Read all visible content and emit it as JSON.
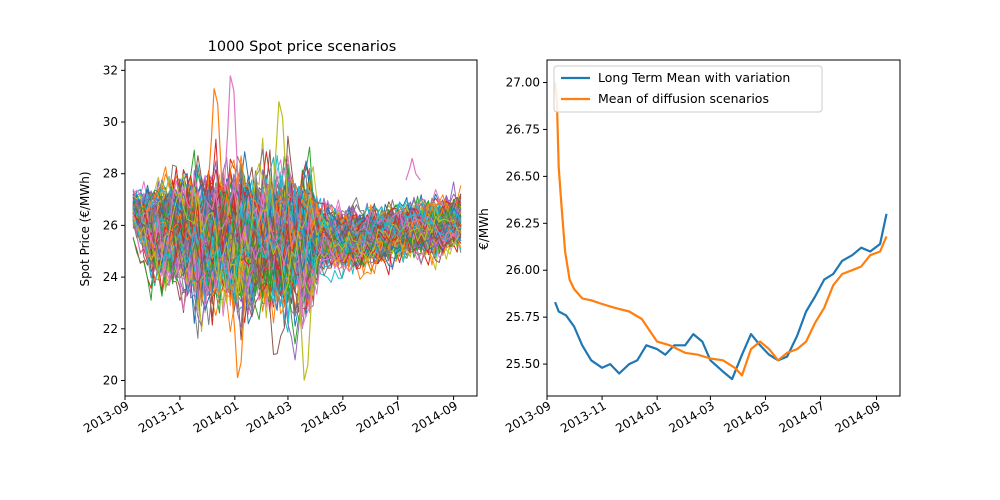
{
  "chart_data": [
    {
      "type": "line",
      "title": "1000 Spot price scenarios",
      "xlabel": "",
      "ylabel": "Spot Price (€/MWh)",
      "x_start": "2013-09-10",
      "x_end": "2014-09-12",
      "xlim": [
        "2013-09-01",
        "2014-09-27"
      ],
      "ylim": [
        19.4,
        32.4
      ],
      "xticks": [
        "2013-09",
        "2013-11",
        "2014-01",
        "2014-03",
        "2014-05",
        "2014-07",
        "2014-09"
      ],
      "yticks": [
        20,
        22,
        24,
        26,
        28,
        30,
        32
      ],
      "series_count": 1000,
      "colors": [
        "#1f77b4",
        "#ff7f0e",
        "#2ca02c",
        "#d62728",
        "#9467bd",
        "#8c564b",
        "#e377c2",
        "#7f7f7f",
        "#bcbd22",
        "#17becf"
      ],
      "envelope": {
        "x": [
          "2013-09-10",
          "2013-10-01",
          "2013-11-01",
          "2013-12-01",
          "2014-01-01",
          "2014-02-01",
          "2014-03-01",
          "2014-03-25",
          "2014-04-05",
          "2014-05-01",
          "2014-06-01",
          "2014-07-01",
          "2014-08-01",
          "2014-09-12"
        ],
        "upper": [
          27.8,
          28.6,
          29.4,
          30.2,
          30.3,
          30.4,
          30.4,
          30.2,
          28.2,
          27.8,
          27.6,
          27.6,
          27.8,
          28.0
        ],
        "lower": [
          25.2,
          23.0,
          21.8,
          21.0,
          20.8,
          20.8,
          20.6,
          20.4,
          23.8,
          23.8,
          23.8,
          24.0,
          24.0,
          24.2
        ],
        "mean": [
          26.6,
          25.9,
          25.8,
          25.6,
          25.5,
          25.5,
          25.4,
          25.5,
          25.6,
          25.6,
          25.6,
          25.9,
          26.0,
          26.2
        ]
      },
      "spikes": [
        {
          "x": "2013-12-10",
          "y": 31.3,
          "color": "#ff7f0e"
        },
        {
          "x": "2013-12-28",
          "y": 31.8,
          "color": "#e377c2"
        },
        {
          "x": "2014-02-20",
          "y": 30.8,
          "color": "#bcbd22"
        },
        {
          "x": "2014-07-18",
          "y": 28.6,
          "color": "#e377c2"
        },
        {
          "x": "2014-03-20",
          "y": 20.0,
          "color": "#bcbd22"
        },
        {
          "x": "2014-01-05",
          "y": 20.1,
          "color": "#ff7f0e"
        }
      ]
    },
    {
      "type": "line",
      "title": "",
      "xlabel": "",
      "ylabel": "€/MWh",
      "xlim": [
        "2013-09-01",
        "2014-09-27"
      ],
      "ylim": [
        25.33,
        27.12
      ],
      "xticks": [
        "2013-09",
        "2013-11",
        "2014-01",
        "2014-03",
        "2014-05",
        "2014-07",
        "2014-09"
      ],
      "yticks": [
        25.5,
        25.75,
        26.0,
        26.25,
        26.5,
        26.75,
        27.0
      ],
      "legend": "top-left",
      "series": [
        {
          "name": "Long Term Mean with variation",
          "color": "#1f77b4",
          "x": [
            "2013-09-10",
            "2013-09-14",
            "2013-09-22",
            "2013-10-01",
            "2013-10-10",
            "2013-10-20",
            "2013-11-01",
            "2013-11-10",
            "2013-11-20",
            "2013-12-01",
            "2013-12-10",
            "2013-12-20",
            "2014-01-01",
            "2014-01-10",
            "2014-01-20",
            "2014-02-01",
            "2014-02-10",
            "2014-02-20",
            "2014-03-01",
            "2014-03-15",
            "2014-03-25",
            "2014-04-05",
            "2014-04-15",
            "2014-04-25",
            "2014-05-05",
            "2014-05-15",
            "2014-05-25",
            "2014-06-05",
            "2014-06-15",
            "2014-06-25",
            "2014-07-05",
            "2014-07-15",
            "2014-07-25",
            "2014-08-05",
            "2014-08-15",
            "2014-08-25",
            "2014-09-05",
            "2014-09-12"
          ],
          "y": [
            25.83,
            25.78,
            25.76,
            25.7,
            25.6,
            25.52,
            25.48,
            25.5,
            25.45,
            25.5,
            25.52,
            25.6,
            25.58,
            25.55,
            25.6,
            25.6,
            25.66,
            25.62,
            25.52,
            25.46,
            25.42,
            25.55,
            25.66,
            25.6,
            25.55,
            25.52,
            25.54,
            25.65,
            25.78,
            25.86,
            25.95,
            25.98,
            26.05,
            26.08,
            26.12,
            26.1,
            26.14,
            26.3
          ]
        },
        {
          "name": "Mean of diffusion scenarios",
          "color": "#ff7f0e",
          "x": [
            "2013-09-10",
            "2013-09-12",
            "2013-09-14",
            "2013-09-17",
            "2013-09-21",
            "2013-09-26",
            "2013-10-01",
            "2013-10-10",
            "2013-10-20",
            "2013-11-01",
            "2013-11-15",
            "2013-12-01",
            "2013-12-15",
            "2014-01-01",
            "2014-01-15",
            "2014-02-01",
            "2014-02-15",
            "2014-03-01",
            "2014-03-15",
            "2014-03-28",
            "2014-04-05",
            "2014-04-15",
            "2014-04-25",
            "2014-05-05",
            "2014-05-15",
            "2014-05-25",
            "2014-06-05",
            "2014-06-15",
            "2014-06-25",
            "2014-07-05",
            "2014-07-15",
            "2014-07-25",
            "2014-08-05",
            "2014-08-15",
            "2014-08-25",
            "2014-09-05",
            "2014-09-12"
          ],
          "y": [
            27.0,
            26.9,
            26.55,
            26.35,
            26.1,
            25.95,
            25.9,
            25.85,
            25.84,
            25.82,
            25.8,
            25.78,
            25.74,
            25.62,
            25.6,
            25.56,
            25.55,
            25.53,
            25.52,
            25.48,
            25.44,
            25.58,
            25.62,
            25.58,
            25.52,
            25.56,
            25.58,
            25.62,
            25.72,
            25.8,
            25.92,
            25.98,
            26.0,
            26.02,
            26.08,
            26.1,
            26.18
          ]
        }
      ]
    }
  ]
}
